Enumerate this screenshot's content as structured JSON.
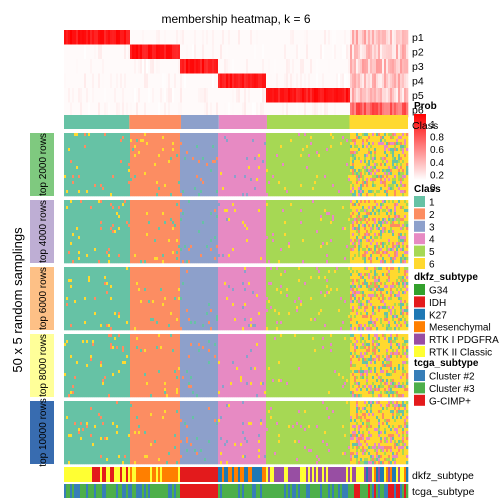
{
  "chart_data": {
    "type": "heatmap",
    "title": "membership heatmap, k = 6",
    "y_axis_label": "50 x 5 random samplings",
    "prob_rows": [
      "p1",
      "p2",
      "p3",
      "p4",
      "p5",
      "p6"
    ],
    "class_row_label": "Class",
    "class_order": [
      1,
      2,
      3,
      4,
      5,
      6
    ],
    "class_column_fractions": [
      0.19,
      0.15,
      0.11,
      0.14,
      0.24,
      0.17
    ],
    "sampling_groups": [
      "top 2000 rows",
      "top 4000 rows",
      "top 6000 rows",
      "top 8000 rows",
      "top 10000 rows"
    ],
    "annotation_rows": [
      "dkfz_subtype",
      "tcga_subtype"
    ],
    "legends": {
      "prob": {
        "title": "Prob",
        "ticks": [
          "1",
          "0.8",
          "0.6",
          "0.4",
          "0.2",
          "0"
        ],
        "color_low": "#ffffff",
        "color_high": "#ff0000"
      },
      "class": {
        "title": "Class",
        "items": [
          {
            "label": "1",
            "color": "#66c2a5"
          },
          {
            "label": "2",
            "color": "#fc8d62"
          },
          {
            "label": "3",
            "color": "#8da0cb"
          },
          {
            "label": "4",
            "color": "#e78ac3"
          },
          {
            "label": "5",
            "color": "#a6d854"
          },
          {
            "label": "6",
            "color": "#ffd92f"
          }
        ]
      },
      "dkfz_subtype": {
        "title": "dkfz_subtype",
        "items": [
          {
            "label": "G34",
            "color": "#33a02c"
          },
          {
            "label": "IDH",
            "color": "#e31a1c"
          },
          {
            "label": "K27",
            "color": "#1f78b4"
          },
          {
            "label": "Mesenchymal",
            "color": "#ff7f00"
          },
          {
            "label": "RTK I PDGFRA",
            "color": "#984ea3"
          },
          {
            "label": "RTK II Classic",
            "color": "#ffff33"
          }
        ]
      },
      "tcga_subtype": {
        "title": "tcga_subtype",
        "items": [
          {
            "label": "Cluster #2",
            "color": "#377eb8"
          },
          {
            "label": "Cluster #3",
            "color": "#4daf4a"
          },
          {
            "label": "G-CIMP+",
            "color": "#e41a1c"
          }
        ]
      }
    },
    "group_colors": [
      "#7fc97f",
      "#beaed4",
      "#fdc086",
      "#ffff99",
      "#386cb0"
    ]
  }
}
